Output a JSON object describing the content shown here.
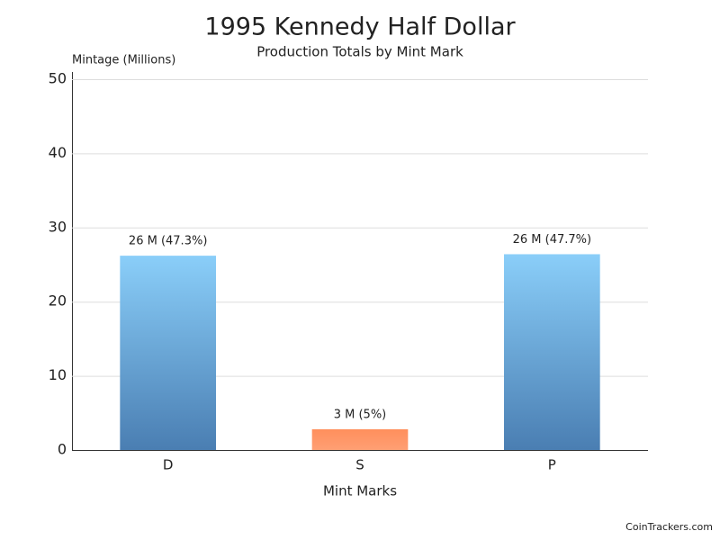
{
  "chart_data": {
    "type": "bar",
    "title": "1995 Kennedy Half Dollar",
    "subtitle": "Production Totals by Mint Mark",
    "y_label": "Mintage (Millions)",
    "x_label": "Mint Marks",
    "categories": [
      "D",
      "S",
      "P"
    ],
    "values": [
      26.2,
      2.8,
      26.4
    ],
    "value_labels": [
      "26 M (47.3%)",
      "3 M (5%)",
      "26 M (47.7%)"
    ],
    "gradients": [
      [
        "#8acef9",
        "#4a7eb2"
      ],
      [
        "#ff8f5c",
        "#ff9f73"
      ],
      [
        "#8acef9",
        "#4a7eb2"
      ]
    ],
    "ylim": [
      0,
      50
    ],
    "yticks": [
      0,
      10,
      20,
      30,
      40,
      50
    ],
    "grid": true,
    "footer": "CoinTrackers.com"
  }
}
